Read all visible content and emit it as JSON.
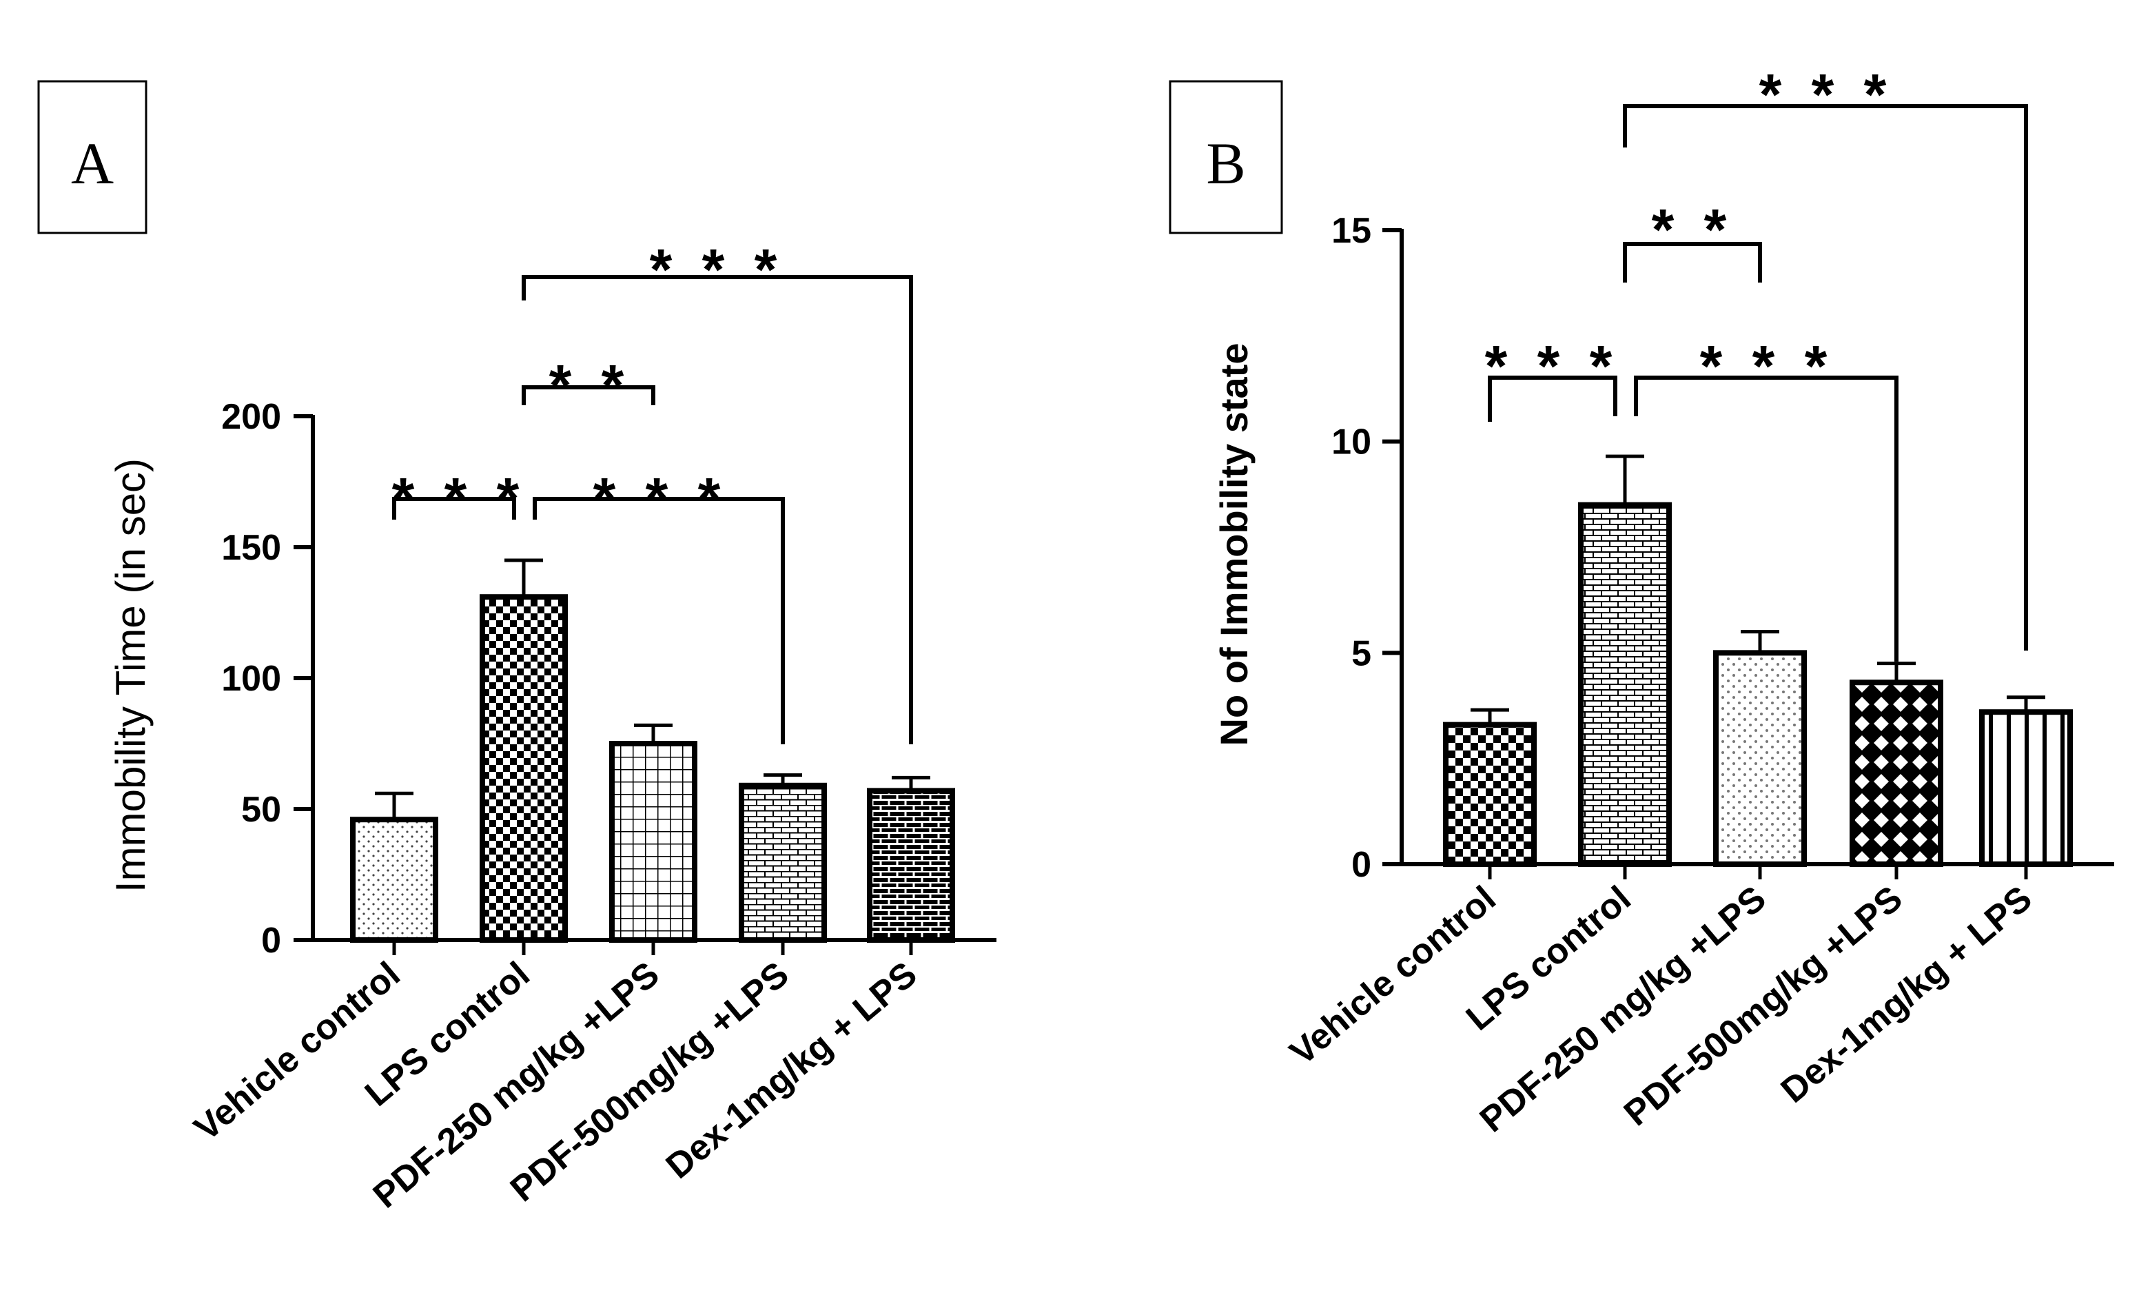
{
  "chart_data": [
    {
      "type": "bar",
      "panel": "A",
      "title": "",
      "xlabel": "",
      "ylabel": "Immobility Time (in sec)",
      "ylim": [
        0,
        200
      ],
      "yticks": [
        "0",
        "50",
        "100",
        "150",
        "200"
      ],
      "categories": [
        "Vehicle control",
        "LPS control",
        "PDF-250 mg/kg +LPS",
        "PDF-500mg/kg +LPS",
        "Dex-1mg/kg + LPS"
      ],
      "values": [
        46,
        131,
        75,
        59,
        57
      ],
      "errors": [
        10,
        14,
        7,
        4,
        5
      ],
      "significance": [
        {
          "from": 0,
          "to": 1,
          "label": "* * *"
        },
        {
          "from": 1,
          "to": 2,
          "label": "* *"
        },
        {
          "from": 1,
          "to": 3,
          "label": "* * *"
        },
        {
          "from": 1,
          "to": 4,
          "label": "* * *"
        }
      ]
    },
    {
      "type": "bar",
      "panel": "B",
      "title": "",
      "xlabel": "",
      "ylabel": "No of Immobility state",
      "ylim": [
        0,
        15
      ],
      "yticks": [
        "0",
        "5",
        "10",
        "15"
      ],
      "categories": [
        "Vehicle control",
        "LPS control",
        "PDF-250 mg/kg +LPS",
        "PDF-500mg/kg +LPS",
        "Dex-1mg/kg + LPS"
      ],
      "values": [
        3.3,
        8.5,
        5.0,
        4.3,
        3.6
      ],
      "errors": [
        0.35,
        1.15,
        0.5,
        0.45,
        0.35
      ],
      "significance": [
        {
          "from": 0,
          "to": 1,
          "label": "* * *"
        },
        {
          "from": 1,
          "to": 2,
          "label": "* *"
        },
        {
          "from": 1,
          "to": 3,
          "label": "* * *"
        },
        {
          "from": 1,
          "to": 4,
          "label": "* * *"
        }
      ]
    }
  ]
}
